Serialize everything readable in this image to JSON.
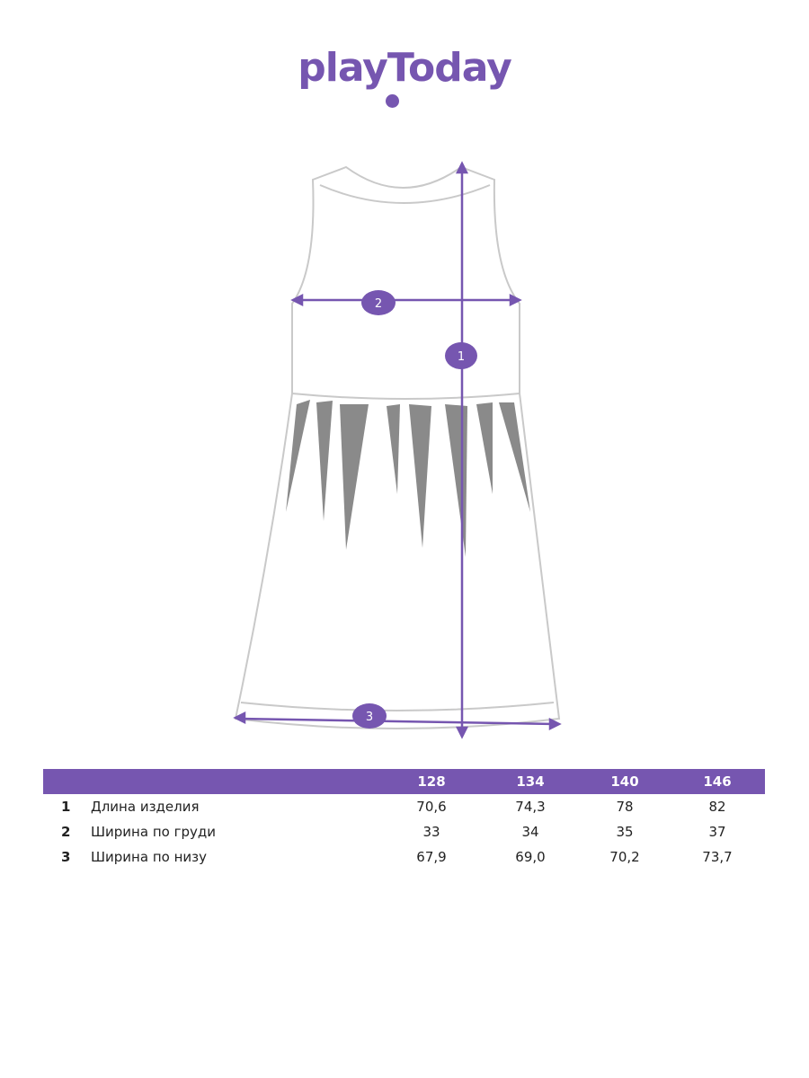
{
  "brand": {
    "logo_text": "playToday",
    "color": "#7656b0"
  },
  "diagram": {
    "markers": [
      "1",
      "2",
      "3"
    ]
  },
  "table": {
    "sizes": [
      "128",
      "134",
      "140",
      "146"
    ],
    "rows": [
      {
        "num": "1",
        "label": "Длина изделия",
        "values": [
          "70,6",
          "74,3",
          "78",
          "82"
        ]
      },
      {
        "num": "2",
        "label": "Ширина по груди",
        "values": [
          "33",
          "34",
          "35",
          "37"
        ]
      },
      {
        "num": "3",
        "label": "Ширина по низу",
        "values": [
          "67,9",
          "69,0",
          "70,2",
          "73,7"
        ]
      }
    ]
  }
}
